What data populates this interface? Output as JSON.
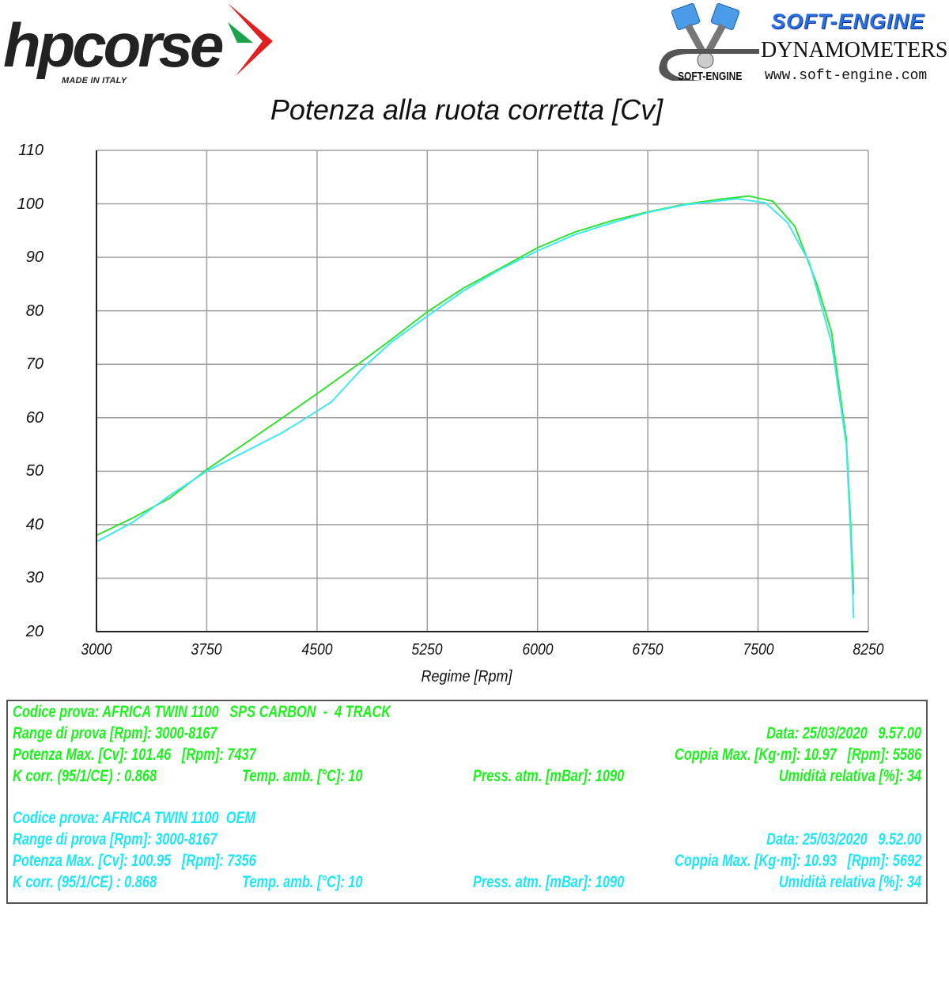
{
  "header": {
    "left_logo": {
      "brand": "hpcorse",
      "tagline": "MADE IN ITALY",
      "accent_colors": [
        "#e02020",
        "#1aa34a"
      ]
    },
    "right_logo": {
      "title": "SOFT-ENGINE",
      "subtitle": "DYNAMOMETERS",
      "mark": "SOFT-ENGINE",
      "url": "www.soft-engine.com",
      "accent_color": "#2a6fe0"
    }
  },
  "chart_data": {
    "type": "line",
    "title": "Potenza alla ruota corretta [Cv]",
    "xlabel": "Regime [Rpm]",
    "ylabel": "",
    "xlim": [
      3000,
      8250
    ],
    "ylim": [
      20,
      110
    ],
    "xticks": [
      3000,
      3750,
      4500,
      5250,
      6000,
      6750,
      7500,
      8250
    ],
    "yticks": [
      110,
      100,
      90,
      80,
      70,
      60,
      50,
      40,
      30,
      20
    ],
    "grid": true,
    "legend_position": "none",
    "series": [
      {
        "name": "AFRICA TWIN 1100 SPS CARBON - 4 TRACK",
        "color": "#33e033",
        "x": [
          3000,
          3250,
          3500,
          3750,
          4000,
          4250,
          4500,
          4750,
          5000,
          5250,
          5500,
          5750,
          6000,
          6250,
          6500,
          6750,
          7000,
          7250,
          7437,
          7600,
          7750,
          7900,
          8000,
          8100,
          8130,
          8150
        ],
        "values": [
          38.0,
          41.3,
          45.0,
          50.3,
          55.0,
          59.7,
          64.5,
          69.4,
          74.5,
          79.8,
          84.3,
          88.0,
          91.8,
          94.7,
          96.8,
          98.5,
          99.9,
          100.9,
          101.46,
          100.5,
          95.8,
          85.0,
          76.0,
          56.0,
          40.0,
          27.0
        ]
      },
      {
        "name": "AFRICA TWIN 1100 OEM",
        "color": "#40e8f0",
        "x": [
          3000,
          3250,
          3500,
          3750,
          4000,
          4250,
          4400,
          4600,
          4800,
          5000,
          5250,
          5500,
          5750,
          6000,
          6250,
          6500,
          6750,
          7000,
          7356,
          7550,
          7700,
          7850,
          8000,
          8100,
          8130,
          8150
        ],
        "values": [
          36.8,
          40.5,
          45.5,
          50.0,
          53.5,
          57.0,
          59.5,
          63.0,
          69.0,
          74.0,
          79.0,
          83.8,
          87.8,
          91.2,
          94.2,
          96.4,
          98.4,
          99.8,
          100.95,
          100.2,
          96.5,
          89.0,
          74.0,
          55.0,
          38.0,
          22.5
        ]
      }
    ]
  },
  "tests": [
    {
      "color": "#1ef21e",
      "codice": "Codice prova: AFRICA TWIN 1100   SPS CARBON  -  4 TRACK",
      "range": "Range di prova [Rpm]: 3000-8167",
      "data": "Data: 25/03/2020   9.57.00",
      "potenza": "Potenza Max. [Cv]: 101.46   [Rpm]: 7437",
      "coppia": "Coppia Max. [Kg·m]: 10.97   [Rpm]: 5586",
      "kcorr": "K corr. (95/1/CE) : 0.868",
      "temp": "Temp. amb. [°C]: 10",
      "press": "Press. atm. [mBar]: 1090",
      "umidita": "Umidità relativa [%]: 34"
    },
    {
      "color": "#1ee6f2",
      "codice": "Codice prova: AFRICA TWIN 1100  OEM",
      "range": "Range di prova [Rpm]: 3000-8167",
      "data": "Data: 25/03/2020   9.52.00",
      "potenza": "Potenza Max. [Cv]: 100.95   [Rpm]: 7356",
      "coppia": "Coppia Max. [Kg·m]: 10.93   [Rpm]: 5692",
      "kcorr": "K corr. (95/1/CE) : 0.868",
      "temp": "Temp. amb. [°C]: 10",
      "press": "Press. atm. [mBar]: 1090",
      "umidita": "Umidità relativa [%]: 34"
    }
  ]
}
